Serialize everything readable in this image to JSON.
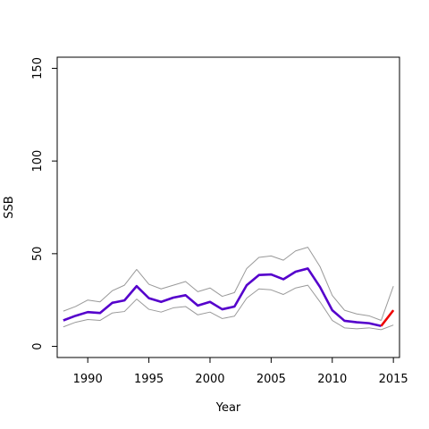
{
  "chart_data": {
    "type": "line",
    "xlabel": "Year",
    "ylabel": "SSB",
    "xlim": [
      1987.5,
      2015.5
    ],
    "ylim": [
      -6,
      156
    ],
    "x_ticks": [
      1990,
      1995,
      2000,
      2005,
      2010,
      2015
    ],
    "y_ticks": [
      0,
      50,
      100,
      150
    ],
    "grid": false,
    "legend": "none",
    "x": [
      1988,
      1989,
      1990,
      1991,
      1992,
      1993,
      1994,
      1995,
      1996,
      1997,
      1998,
      1999,
      2000,
      2001,
      2002,
      2003,
      2004,
      2005,
      2006,
      2007,
      2008,
      2009,
      2010,
      2011,
      2012,
      2013,
      2014
    ],
    "series": [
      {
        "role": "estimate",
        "color": "#5500cc",
        "values": [
          14.0,
          16.5,
          18.5,
          18.0,
          23.5,
          24.8,
          32.5,
          26.0,
          24.0,
          26.3,
          27.6,
          22.0,
          24.0,
          20.0,
          21.5,
          33.0,
          38.5,
          38.8,
          36.2,
          40.3,
          42.0,
          32.0,
          19.5,
          13.8,
          13.0,
          12.5,
          11.0
        ]
      },
      {
        "role": "upper-bound",
        "color": "#999999",
        "values": [
          19.0,
          21.5,
          25.0,
          24.0,
          30.0,
          33.0,
          41.5,
          33.5,
          31.0,
          33.0,
          35.0,
          29.5,
          31.5,
          27.0,
          29.0,
          42.0,
          48.0,
          48.8,
          46.5,
          51.5,
          53.5,
          43.0,
          27.5,
          19.5,
          17.5,
          16.5,
          14.0
        ]
      },
      {
        "role": "lower-bound",
        "color": "#999999",
        "values": [
          10.5,
          13.0,
          14.5,
          14.0,
          18.0,
          18.8,
          25.5,
          20.0,
          18.5,
          20.8,
          21.5,
          17.0,
          18.5,
          15.0,
          16.3,
          26.0,
          31.0,
          30.5,
          28.0,
          31.5,
          33.0,
          24.0,
          14.0,
          10.0,
          9.5,
          10.0,
          9.0
        ]
      }
    ],
    "projection": {
      "color": "#ee0000",
      "x": [
        2014,
        2015
      ],
      "values": [
        11.0,
        19.5
      ]
    },
    "projection_upper": {
      "color": "#999999",
      "x": [
        2014,
        2015
      ],
      "values": [
        14.0,
        32.5
      ]
    },
    "projection_lower": {
      "color": "#999999",
      "x": [
        2014,
        2015
      ],
      "values": [
        9.0,
        11.5
      ]
    }
  }
}
